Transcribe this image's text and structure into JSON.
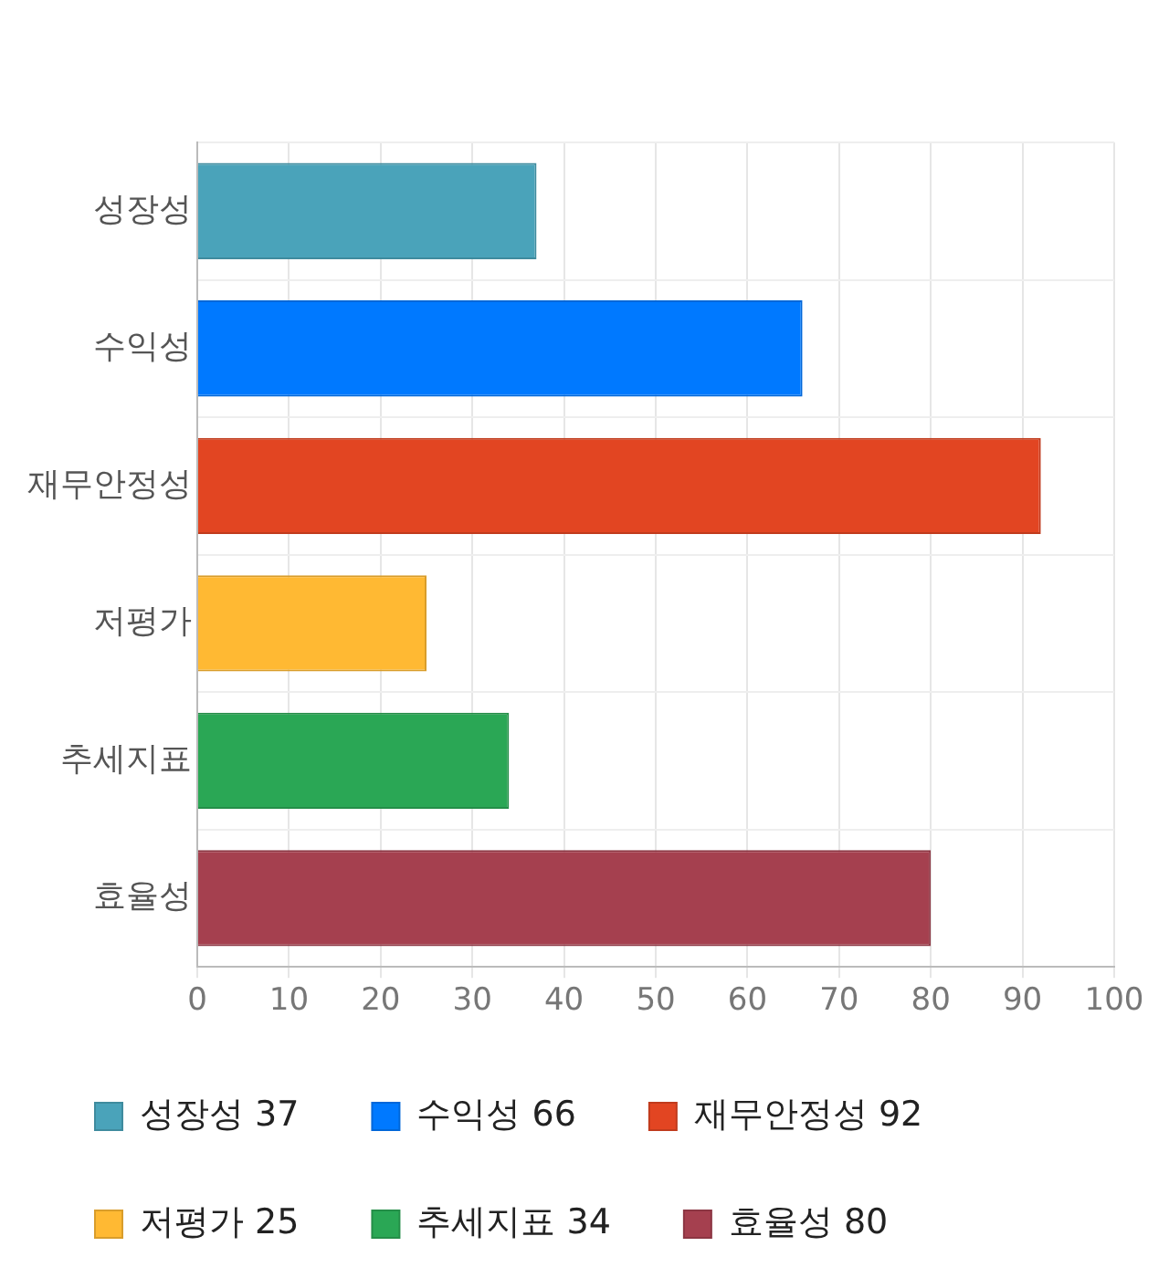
{
  "chart_data": {
    "type": "bar",
    "orientation": "horizontal",
    "categories": [
      "성장성",
      "수익성",
      "재무안정성",
      "저평가",
      "추세지표",
      "효율성"
    ],
    "series": [
      {
        "name": "성장성 37",
        "color": "#4aa3ba",
        "values": [
          37,
          null,
          null,
          null,
          null,
          null
        ]
      },
      {
        "name": "수익성 66",
        "color": "#0079ff",
        "values": [
          null,
          66,
          null,
          null,
          null,
          null
        ]
      },
      {
        "name": "재무안정성 92",
        "color": "#e24522",
        "values": [
          null,
          null,
          92,
          null,
          null,
          null
        ]
      },
      {
        "name": "저평가 25",
        "color": "#ffb933",
        "values": [
          null,
          null,
          null,
          25,
          null,
          null
        ]
      },
      {
        "name": "추세지표 34",
        "color": "#2aa755",
        "values": [
          null,
          null,
          null,
          null,
          34,
          null
        ]
      },
      {
        "name": "효율성 80",
        "color": "#a5404f",
        "values": [
          null,
          null,
          null,
          null,
          null,
          80
        ]
      }
    ],
    "xlim": [
      0,
      100
    ],
    "xticks": [
      0,
      10,
      20,
      30,
      40,
      50,
      60,
      70,
      80,
      90,
      100
    ],
    "grid": true,
    "legend": "bottom"
  }
}
